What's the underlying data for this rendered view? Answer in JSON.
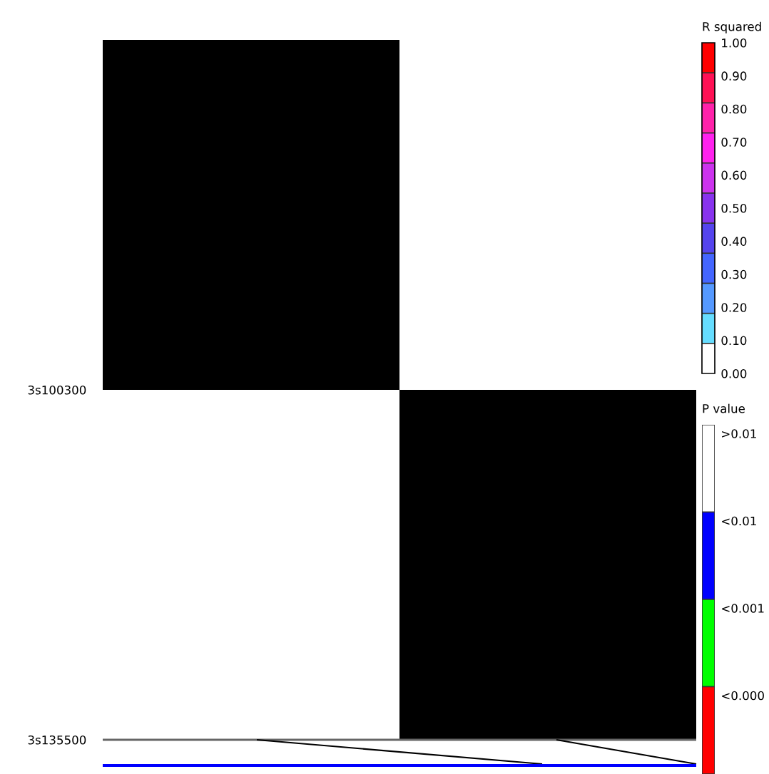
{
  "chart_data": [
    {
      "type": "heatmap",
      "categories": [
        null,
        null
      ],
      "y_categories": [
        "3s100300",
        "3s135500"
      ],
      "cells": [
        [
          null,
          0.0
        ],
        [
          null,
          null
        ]
      ],
      "clabel": "R squared",
      "clim": [
        0,
        1
      ],
      "cticks": [
        {
          "value": 0,
          "label": "0.00"
        },
        {
          "value": 0.1,
          "label": "0.10"
        },
        {
          "value": 0.2,
          "label": "0.20"
        },
        {
          "value": 0.3,
          "label": "0.30"
        },
        {
          "value": 0.4,
          "label": "0.40"
        },
        {
          "value": 0.5,
          "label": "0.50"
        },
        {
          "value": 0.6,
          "label": "0.60"
        },
        {
          "value": 0.7,
          "label": "0.70"
        },
        {
          "value": 0.8,
          "label": "0.80"
        },
        {
          "value": 0.9,
          "label": "0.90"
        },
        {
          "value": 1,
          "label": "1.00"
        }
      ],
      "colors": [
        "#ffffff",
        "#66ddff",
        "#5599ff",
        "#4466ff",
        "#5544ee",
        "#8833ee",
        "#cc33ee",
        "#ff22ee",
        "#ff22aa",
        "#ff1155",
        "#ff0000"
      ]
    },
    {
      "type": "other",
      "title": "P value",
      "categories": [
        ">0.01",
        "<0.01",
        "<0.001",
        "<0.000"
      ],
      "colors": [
        "#ffffff",
        "#0000ff",
        "#00ff00",
        "#ff0000"
      ]
    }
  ]
}
